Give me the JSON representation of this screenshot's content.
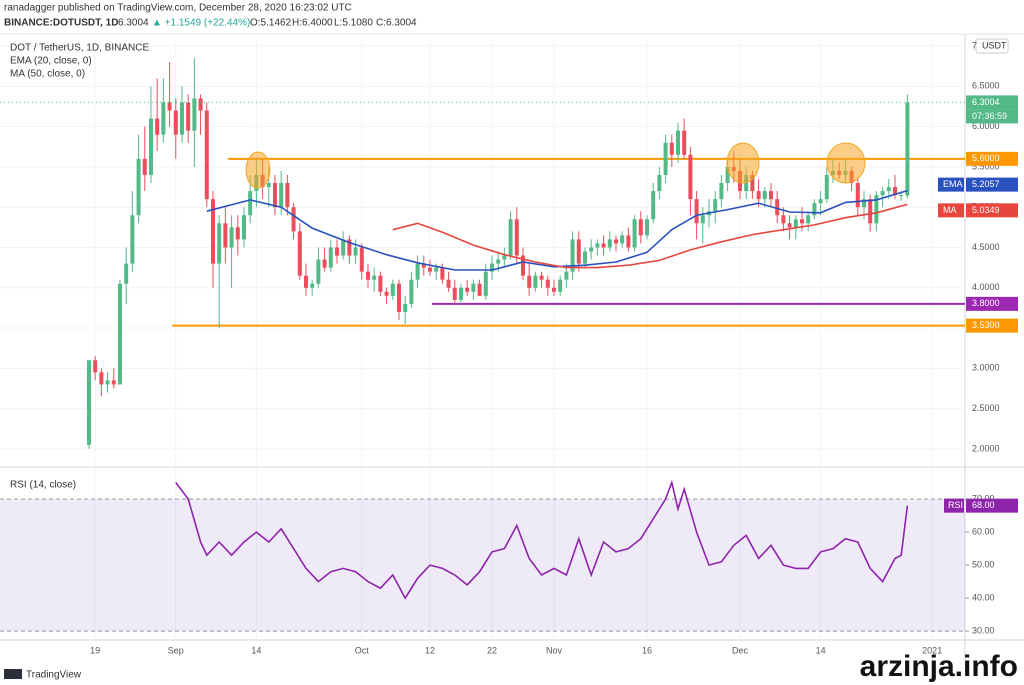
{
  "header": {
    "author": "ranadagger published on TradingView.com, December 28, 2020 16:23:02 UTC",
    "symbol": "BINANCE:DOTUSDT, 1D",
    "price": "6.3004",
    "change": "▲ +1.1549 (+22.44%)",
    "ohlc": [
      "O:5.1462",
      "H:6.4000",
      "L:5.1080",
      "C:6.3004"
    ],
    "footer": "TradingView",
    "watermark": "arzinja.info"
  },
  "chart_data": [
    {
      "type": "candlestick",
      "title": "DOT / TetherUS, 1D, BINANCE",
      "currency": "USDT",
      "countdown": "07:36:59",
      "up_color": "#53b987",
      "down_color": "#eb4d5c",
      "xlim": [
        -14.35,
        141.29
      ],
      "ylim": [
        1.8,
        7.1
      ],
      "xticks": [
        {
          "value": 1,
          "label": "19"
        },
        {
          "value": 14,
          "label": "Sep"
        },
        {
          "value": 27,
          "label": "14"
        },
        {
          "value": 44,
          "label": "Oct"
        },
        {
          "value": 55,
          "label": "12"
        },
        {
          "value": 65,
          "label": "22"
        },
        {
          "value": 75,
          "label": "Nov"
        },
        {
          "value": 90,
          "label": "16"
        },
        {
          "value": 105,
          "label": "Dec"
        },
        {
          "value": 118,
          "label": "14"
        },
        {
          "value": 136,
          "label": "2021"
        }
      ],
      "yticks": [
        {
          "value": 2,
          "label": "2.0000"
        },
        {
          "value": 2.5,
          "label": "2.5000"
        },
        {
          "value": 3,
          "label": "3.0000"
        },
        {
          "value": 3.5,
          "label": "3.5000"
        },
        {
          "value": 4,
          "label": "4.0000"
        },
        {
          "value": 4.5,
          "label": "4.5000"
        },
        {
          "value": 5,
          "label": "5.0000"
        },
        {
          "value": 5.5,
          "label": "5.5000"
        },
        {
          "value": 6,
          "label": "6.0000"
        },
        {
          "value": 6.5,
          "label": "6.5000"
        },
        7
      ],
      "grid": true,
      "candles": [
        [
          2.05,
          3.1,
          2.0,
          3.1
        ],
        [
          3.1,
          3.15,
          2.85,
          2.95
        ],
        [
          2.95,
          3.0,
          2.65,
          2.8
        ],
        [
          2.8,
          2.95,
          2.7,
          2.85
        ],
        [
          2.85,
          3.0,
          2.75,
          2.8
        ],
        [
          2.8,
          4.1,
          2.8,
          4.05
        ],
        [
          4.05,
          4.5,
          3.8,
          4.3
        ],
        [
          4.3,
          5.2,
          4.2,
          4.9
        ],
        [
          4.9,
          5.9,
          4.8,
          5.6
        ],
        [
          5.6,
          6.0,
          5.2,
          5.4
        ],
        [
          5.4,
          6.5,
          5.3,
          6.1
        ],
        [
          6.1,
          6.6,
          5.7,
          5.9
        ],
        [
          5.9,
          6.6,
          5.8,
          6.3
        ],
        [
          6.3,
          6.8,
          6.0,
          6.2
        ],
        [
          6.2,
          6.35,
          5.6,
          5.9
        ],
        [
          5.9,
          6.5,
          5.8,
          6.3
        ],
        [
          6.3,
          6.4,
          5.8,
          5.95
        ],
        [
          5.95,
          6.85,
          5.5,
          6.35
        ],
        [
          6.35,
          6.4,
          5.9,
          6.2
        ],
        [
          6.2,
          6.3,
          5.0,
          5.1
        ],
        [
          5.1,
          5.2,
          4.0,
          4.3
        ],
        [
          4.3,
          4.9,
          3.5,
          4.8
        ],
        [
          4.8,
          5.0,
          4.3,
          4.5
        ],
        [
          4.5,
          4.9,
          4.0,
          4.75
        ],
        [
          4.75,
          4.9,
          4.4,
          4.6
        ],
        [
          4.6,
          5.0,
          4.5,
          4.9
        ],
        [
          4.9,
          5.4,
          4.8,
          5.2
        ],
        [
          5.2,
          5.6,
          5.0,
          5.4
        ],
        [
          5.4,
          5.6,
          5.1,
          5.25
        ],
        [
          5.25,
          5.5,
          5.0,
          5.3
        ],
        [
          5.3,
          5.4,
          4.9,
          5.0
        ],
        [
          5.0,
          5.45,
          4.9,
          5.3
        ],
        [
          5.3,
          5.4,
          4.9,
          5.0
        ],
        [
          5.0,
          5.05,
          4.6,
          4.7
        ],
        [
          4.7,
          4.8,
          4.1,
          4.15
        ],
        [
          4.15,
          4.3,
          3.9,
          4.0
        ],
        [
          4.0,
          4.1,
          3.9,
          4.05
        ],
        [
          4.05,
          4.5,
          4.0,
          4.35
        ],
        [
          4.35,
          4.5,
          4.2,
          4.25
        ],
        [
          4.25,
          4.6,
          4.2,
          4.5
        ],
        [
          4.5,
          4.6,
          4.3,
          4.4
        ],
        [
          4.4,
          4.7,
          4.35,
          4.6
        ],
        [
          4.6,
          4.65,
          4.3,
          4.4
        ],
        [
          4.4,
          4.6,
          4.3,
          4.5
        ],
        [
          4.5,
          4.55,
          4.1,
          4.2
        ],
        [
          4.2,
          4.3,
          4.0,
          4.1
        ],
        [
          4.1,
          4.25,
          3.95,
          4.15
        ],
        [
          4.15,
          4.2,
          3.9,
          3.95
        ],
        [
          3.95,
          4.0,
          3.8,
          3.9
        ],
        [
          3.9,
          4.1,
          3.85,
          4.05
        ],
        [
          4.05,
          4.1,
          3.6,
          3.7
        ],
        [
          3.7,
          3.9,
          3.55,
          3.8
        ],
        [
          3.8,
          4.2,
          3.75,
          4.1
        ],
        [
          4.1,
          4.4,
          4.0,
          4.3
        ],
        [
          4.3,
          4.4,
          4.15,
          4.25
        ],
        [
          4.25,
          4.35,
          4.15,
          4.2
        ],
        [
          4.2,
          4.3,
          4.1,
          4.25
        ],
        [
          4.25,
          4.3,
          4.05,
          4.1
        ],
        [
          4.1,
          4.2,
          3.95,
          4.0
        ],
        [
          4.0,
          4.1,
          3.8,
          3.85
        ],
        [
          3.85,
          4.05,
          3.8,
          4.0
        ],
        [
          4.0,
          4.1,
          3.9,
          3.95
        ],
        [
          3.95,
          4.1,
          3.85,
          4.05
        ],
        [
          4.05,
          4.1,
          3.9,
          3.9
        ],
        [
          3.9,
          4.3,
          3.85,
          4.2
        ],
        [
          4.2,
          4.4,
          4.1,
          4.3
        ],
        [
          4.3,
          4.45,
          4.2,
          4.35
        ],
        [
          4.35,
          4.5,
          4.25,
          4.4
        ],
        [
          4.4,
          4.95,
          4.35,
          4.85
        ],
        [
          4.85,
          5.0,
          4.3,
          4.4
        ],
        [
          4.4,
          4.5,
          4.1,
          4.15
        ],
        [
          4.15,
          4.3,
          3.9,
          4.0
        ],
        [
          4.0,
          4.2,
          3.95,
          4.15
        ],
        [
          4.15,
          4.2,
          4.0,
          4.1
        ],
        [
          4.1,
          4.15,
          3.9,
          4.0
        ],
        [
          4.0,
          4.1,
          3.9,
          3.95
        ],
        [
          3.95,
          4.15,
          3.9,
          4.1
        ],
        [
          4.1,
          4.3,
          4.0,
          4.2
        ],
        [
          4.2,
          4.7,
          4.1,
          4.6
        ],
        [
          4.6,
          4.7,
          4.2,
          4.3
        ],
        [
          4.3,
          4.5,
          4.25,
          4.45
        ],
        [
          4.45,
          4.6,
          4.35,
          4.5
        ],
        [
          4.5,
          4.6,
          4.4,
          4.55
        ],
        [
          4.55,
          4.65,
          4.4,
          4.5
        ],
        [
          4.5,
          4.7,
          4.45,
          4.6
        ],
        [
          4.6,
          4.65,
          4.45,
          4.55
        ],
        [
          4.55,
          4.7,
          4.5,
          4.65
        ],
        [
          4.65,
          4.75,
          4.45,
          4.5
        ],
        [
          4.5,
          4.9,
          4.45,
          4.85
        ],
        [
          4.85,
          4.95,
          4.55,
          4.65
        ],
        [
          4.65,
          4.9,
          4.6,
          4.85
        ],
        [
          4.85,
          5.3,
          4.8,
          5.2
        ],
        [
          5.2,
          5.5,
          5.1,
          5.4
        ],
        [
          5.4,
          5.9,
          5.3,
          5.8
        ],
        [
          5.8,
          5.9,
          5.5,
          5.65
        ],
        [
          5.65,
          6.05,
          5.55,
          5.95
        ],
        [
          5.95,
          6.1,
          5.6,
          5.65
        ],
        [
          5.65,
          5.75,
          4.9,
          5.1
        ],
        [
          5.1,
          5.2,
          4.6,
          4.8
        ],
        [
          4.8,
          5.0,
          4.55,
          4.9
        ],
        [
          4.9,
          5.1,
          4.75,
          4.95
        ],
        [
          4.95,
          5.2,
          4.8,
          5.1
        ],
        [
          5.1,
          5.4,
          5.0,
          5.3
        ],
        [
          5.3,
          5.6,
          5.2,
          5.5
        ],
        [
          5.5,
          5.7,
          5.3,
          5.45
        ],
        [
          5.45,
          5.6,
          5.1,
          5.2
        ],
        [
          5.2,
          5.5,
          5.1,
          5.4
        ],
        [
          5.4,
          5.45,
          5.1,
          5.2
        ],
        [
          5.2,
          5.35,
          5.0,
          5.1
        ],
        [
          5.1,
          5.25,
          5.0,
          5.2
        ],
        [
          5.2,
          5.3,
          5.0,
          5.1
        ],
        [
          5.1,
          5.2,
          4.8,
          4.9
        ],
        [
          4.9,
          5.0,
          4.7,
          4.8
        ],
        [
          4.8,
          4.9,
          4.6,
          4.75
        ],
        [
          4.75,
          4.9,
          4.6,
          4.85
        ],
        [
          4.85,
          5.0,
          4.7,
          4.8
        ],
        [
          4.8,
          4.95,
          4.7,
          4.9
        ],
        [
          4.9,
          5.1,
          4.85,
          5.05
        ],
        [
          5.05,
          5.2,
          4.9,
          5.1
        ],
        [
          5.1,
          5.5,
          5.05,
          5.4
        ],
        [
          5.4,
          5.6,
          5.3,
          5.45
        ],
        [
          5.45,
          5.55,
          5.35,
          5.4
        ],
        [
          5.4,
          5.6,
          5.3,
          5.45
        ],
        [
          5.45,
          5.5,
          5.2,
          5.3
        ],
        [
          5.3,
          5.35,
          4.9,
          5.0
        ],
        [
          5.0,
          5.2,
          4.85,
          5.1
        ],
        [
          5.1,
          5.15,
          4.7,
          4.8
        ],
        [
          4.8,
          5.2,
          4.7,
          5.15
        ],
        [
          5.15,
          5.25,
          5.0,
          5.2
        ],
        [
          5.2,
          5.35,
          5.1,
          5.25
        ],
        [
          5.25,
          5.4,
          5.1,
          5.15
        ],
        [
          5.15,
          5.2,
          5.08,
          5.15
        ],
        [
          5.1462,
          6.4,
          5.108,
          6.3004
        ]
      ],
      "series": [
        {
          "name": "EMA (20, close, 0)",
          "tag": "EMA",
          "color": "#2a52be",
          "x": [
            19,
            26,
            31,
            36,
            42,
            48,
            53,
            59,
            65,
            70,
            75,
            80,
            85,
            90,
            94,
            98,
            103,
            108,
            113,
            118,
            122,
            127,
            132
          ],
          "values": [
            4.95,
            5.09,
            5.0,
            4.74,
            4.56,
            4.41,
            4.31,
            4.22,
            4.22,
            4.32,
            4.26,
            4.28,
            4.32,
            4.44,
            4.72,
            4.9,
            4.97,
            5.05,
            4.94,
            4.93,
            5.06,
            5.09,
            5.2057
          ]
        },
        {
          "name": "MA (50, close, 0)",
          "tag": "MA",
          "color": "#e8453c",
          "x": [
            49,
            53,
            57,
            62,
            67,
            72,
            77,
            82,
            87,
            92,
            97,
            102,
            107,
            112,
            117,
            122,
            127,
            132
          ],
          "values": [
            4.72,
            4.8,
            4.69,
            4.53,
            4.41,
            4.32,
            4.25,
            4.25,
            4.28,
            4.34,
            4.47,
            4.57,
            4.66,
            4.72,
            4.78,
            4.87,
            4.93,
            5.0349
          ]
        }
      ],
      "levels": [
        {
          "value": 5.6,
          "label": "5.6000",
          "color": "#ff9800",
          "x_start": 22.4
        },
        {
          "value": 3.8,
          "label": "3.8000",
          "color": "#9c27b0",
          "x_start": 55.3
        },
        {
          "value": 3.53,
          "label": "3.5300",
          "color": "#ff9800",
          "x_start": 13.4
        }
      ]
    },
    {
      "type": "line",
      "title": "RSI (14, close)",
      "tag": "RSI",
      "xlim": [
        -14.35,
        141.29
      ],
      "ylim": [
        27.3,
        78.8
      ],
      "yticks": [
        {
          "value": 30,
          "label": "30.00"
        },
        {
          "value": 40,
          "label": "40.00"
        },
        {
          "value": 50,
          "label": "50.00"
        },
        {
          "value": 60,
          "label": "60.00"
        },
        {
          "value": 70,
          "label": "70.00"
        }
      ],
      "band": [
        30,
        70
      ],
      "band_color": "#9575cd",
      "series": [
        {
          "name": "RSI (14, close)",
          "color": "#8e24aa",
          "x": [
            14,
            16,
            18,
            19,
            21,
            23,
            25,
            27,
            29,
            31,
            33,
            35,
            37,
            39,
            41,
            43,
            45,
            47,
            49,
            51,
            53,
            55,
            57,
            59,
            61,
            63,
            65,
            67,
            69,
            71,
            73,
            75,
            77,
            79,
            81,
            83,
            85,
            87,
            89,
            91,
            93,
            94,
            95,
            96,
            98,
            100,
            102,
            104,
            106,
            108,
            110,
            112,
            114,
            116,
            118,
            120,
            122,
            124,
            126,
            128,
            130,
            131,
            132
          ],
          "values": [
            75,
            70,
            57,
            53,
            57,
            53,
            57,
            60,
            57,
            61,
            55,
            49,
            45,
            48,
            49,
            48,
            45,
            43,
            47,
            40,
            46,
            50,
            49,
            47,
            44,
            48,
            54,
            55,
            62,
            52,
            47,
            49,
            47,
            58,
            47,
            57,
            54,
            55,
            58,
            64,
            70,
            75,
            67,
            73,
            60,
            50,
            51,
            56,
            59,
            52,
            56,
            50,
            49,
            49,
            54,
            55,
            58,
            57,
            49,
            45,
            52,
            53,
            68
          ],
          "value_labels": {
            "62": "68.00"
          }
        }
      ]
    }
  ]
}
